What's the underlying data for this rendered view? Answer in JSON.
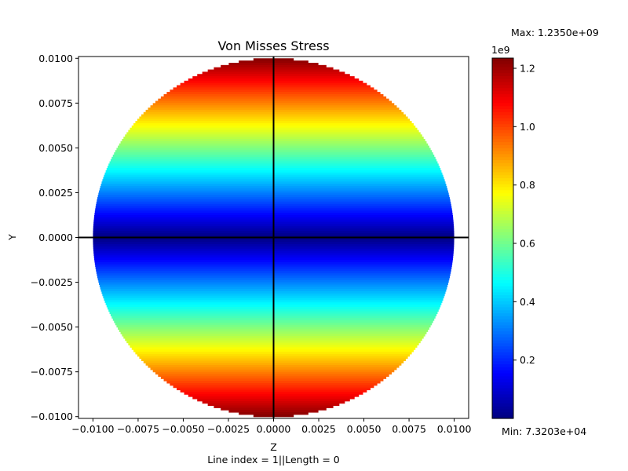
{
  "chart_data": {
    "type": "heatmap",
    "title": "Von Misses Stress",
    "xlabel": "Z",
    "ylabel": "Y",
    "footer_label": "Line index = 1||Length = 0",
    "xlim": [
      -0.0108,
      0.0108
    ],
    "ylim": [
      -0.0101,
      0.0101
    ],
    "xticks": [
      -0.01,
      -0.0075,
      -0.005,
      -0.0025,
      0.0,
      0.0025,
      0.005,
      0.0075,
      0.01
    ],
    "xtick_labels": [
      "−0.0100",
      "−0.0075",
      "−0.0050",
      "−0.0025",
      "0.0000",
      "0.0025",
      "0.0050",
      "0.0075",
      "0.0100"
    ],
    "yticks": [
      -0.01,
      -0.0075,
      -0.005,
      -0.0025,
      0.0,
      0.0025,
      0.005,
      0.0075,
      0.01
    ],
    "ytick_labels": [
      "−0.0100",
      "−0.0075",
      "−0.0050",
      "−0.0025",
      "0.0000",
      "0.0025",
      "0.0050",
      "0.0075",
      "0.0100"
    ],
    "domain": {
      "shape": "circle",
      "center": [
        0.0,
        0.0
      ],
      "radius": 0.01
    },
    "field": {
      "description_values_vary_with": "y",
      "formula": "value = max * (|y| / radius)"
    },
    "reference_lines": {
      "horizontal_at_y": 0.0,
      "vertical_at_z": 0.0,
      "color": "#000000"
    },
    "colormap": "jet",
    "colorbar": {
      "vmin": 73203,
      "vmax": 1235000000,
      "ticks": [
        0.2,
        0.4,
        0.6,
        0.8,
        1.0,
        1.2
      ],
      "tick_labels": [
        "0.2",
        "0.4",
        "0.6",
        "0.8",
        "1.0",
        "1.2"
      ],
      "offset_label": "1e9",
      "max_label": "Max: 1.2350e+09",
      "min_label": "Min: 7.3203e+04"
    },
    "grid": false,
    "legend": "none"
  }
}
